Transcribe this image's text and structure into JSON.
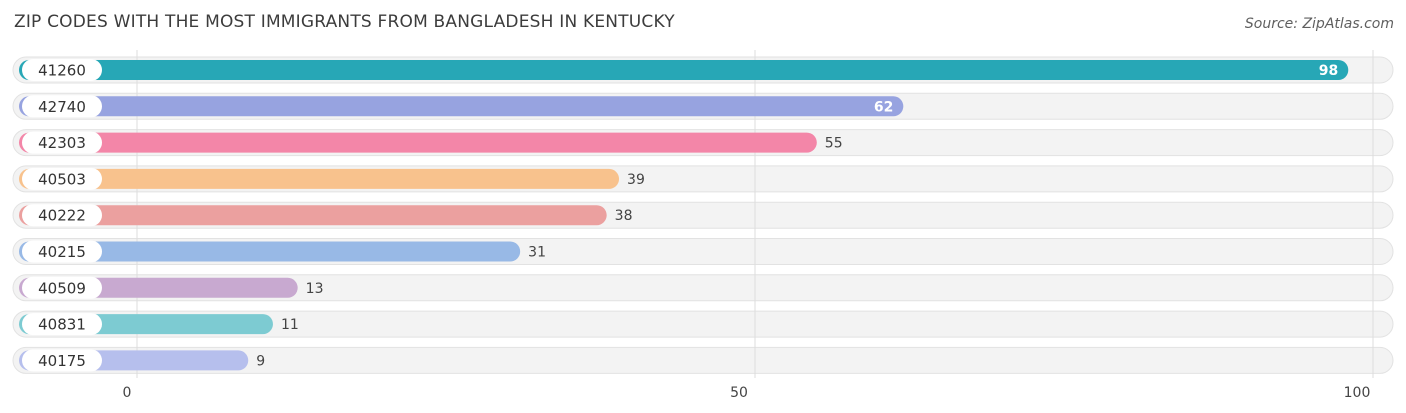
{
  "title": "ZIP CODES WITH THE MOST IMMIGRANTS FROM BANGLADESH IN KENTUCKY",
  "source": "Source: ZipAtlas.com",
  "chart_data": {
    "type": "bar",
    "orientation": "horizontal",
    "title": "ZIP CODES WITH THE MOST IMMIGRANTS FROM BANGLADESH IN KENTUCKY",
    "xlim": [
      0,
      100
    ],
    "ticks": [
      0,
      50,
      100
    ],
    "tick_labels": [
      "0",
      "50",
      "100"
    ],
    "grid": true,
    "categories": [
      "41260",
      "42740",
      "42303",
      "40503",
      "40222",
      "40215",
      "40509",
      "40831",
      "40175"
    ],
    "values": [
      98,
      62,
      55,
      39,
      38,
      31,
      13,
      11,
      9
    ],
    "colors": [
      "#27a7b6",
      "#97a3e0",
      "#f386a8",
      "#f8c28d",
      "#eba09f",
      "#98b9e6",
      "#c8a9d0",
      "#7dcbd2",
      "#b6bfed"
    ]
  }
}
